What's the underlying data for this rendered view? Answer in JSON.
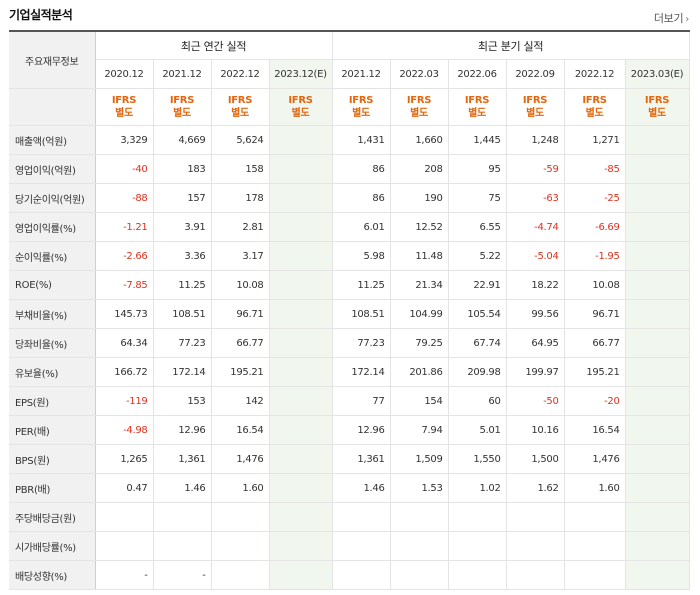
{
  "header": {
    "title": "기업실적분석",
    "more_label": "더보기"
  },
  "table": {
    "row_header": "주요재무정보",
    "group_annual": "최근 연간 실적",
    "group_quarter": "최근 분기 실적",
    "periods_annual": [
      "2020.12",
      "2021.12",
      "2022.12",
      "2023.12(E)"
    ],
    "periods_quarter": [
      "2021.12",
      "2022.03",
      "2022.06",
      "2022.09",
      "2022.12",
      "2023.03(E)"
    ],
    "ifrs_line1": "IFRS",
    "ifrs_line2": "별도",
    "rows": [
      {
        "label": "매출액(억원)",
        "values": [
          "3,329",
          "4,669",
          "5,624",
          "",
          "1,431",
          "1,660",
          "1,445",
          "1,248",
          "1,271",
          ""
        ]
      },
      {
        "label": "영업이익(억원)",
        "values": [
          "-40",
          "183",
          "158",
          "",
          "86",
          "208",
          "95",
          "-59",
          "-85",
          ""
        ]
      },
      {
        "label": "당기순이익(억원)",
        "values": [
          "-88",
          "157",
          "178",
          "",
          "86",
          "190",
          "75",
          "-63",
          "-25",
          ""
        ]
      },
      {
        "label": "영업이익률(%)",
        "values": [
          "-1.21",
          "3.91",
          "2.81",
          "",
          "6.01",
          "12.52",
          "6.55",
          "-4.74",
          "-6.69",
          ""
        ]
      },
      {
        "label": "순이익률(%)",
        "values": [
          "-2.66",
          "3.36",
          "3.17",
          "",
          "5.98",
          "11.48",
          "5.22",
          "-5.04",
          "-1.95",
          ""
        ]
      },
      {
        "label": "ROE(%)",
        "values": [
          "-7.85",
          "11.25",
          "10.08",
          "",
          "11.25",
          "21.34",
          "22.91",
          "18.22",
          "10.08",
          ""
        ]
      },
      {
        "label": "부채비율(%)",
        "values": [
          "145.73",
          "108.51",
          "96.71",
          "",
          "108.51",
          "104.99",
          "105.54",
          "99.56",
          "96.71",
          ""
        ]
      },
      {
        "label": "당좌비율(%)",
        "values": [
          "64.34",
          "77.23",
          "66.77",
          "",
          "77.23",
          "79.25",
          "67.74",
          "64.95",
          "66.77",
          ""
        ]
      },
      {
        "label": "유보율(%)",
        "values": [
          "166.72",
          "172.14",
          "195.21",
          "",
          "172.14",
          "201.86",
          "209.98",
          "199.97",
          "195.21",
          ""
        ]
      },
      {
        "label": "EPS(원)",
        "values": [
          "-119",
          "153",
          "142",
          "",
          "77",
          "154",
          "60",
          "-50",
          "-20",
          ""
        ]
      },
      {
        "label": "PER(배)",
        "values": [
          "-4.98",
          "12.96",
          "16.54",
          "",
          "12.96",
          "7.94",
          "5.01",
          "10.16",
          "16.54",
          ""
        ]
      },
      {
        "label": "BPS(원)",
        "values": [
          "1,265",
          "1,361",
          "1,476",
          "",
          "1,361",
          "1,509",
          "1,550",
          "1,500",
          "1,476",
          ""
        ]
      },
      {
        "label": "PBR(배)",
        "values": [
          "0.47",
          "1.46",
          "1.60",
          "",
          "1.46",
          "1.53",
          "1.02",
          "1.62",
          "1.60",
          ""
        ]
      },
      {
        "label": "주당배당금(원)",
        "values": [
          "",
          "",
          "",
          "",
          "",
          "",
          "",
          "",
          "",
          ""
        ]
      },
      {
        "label": "시가배당률(%)",
        "values": [
          "",
          "",
          "",
          "",
          "",
          "",
          "",
          "",
          "",
          ""
        ]
      },
      {
        "label": "배당성향(%)",
        "values": [
          "-",
          "-",
          "",
          "",
          "",
          "",
          "",
          "",
          "",
          ""
        ]
      }
    ]
  },
  "colors": {
    "negative": "#e0321e",
    "ifrs": "#e5660d",
    "estimate_bg": "#f1f7ee",
    "label_bg": "#f1f1f1"
  }
}
